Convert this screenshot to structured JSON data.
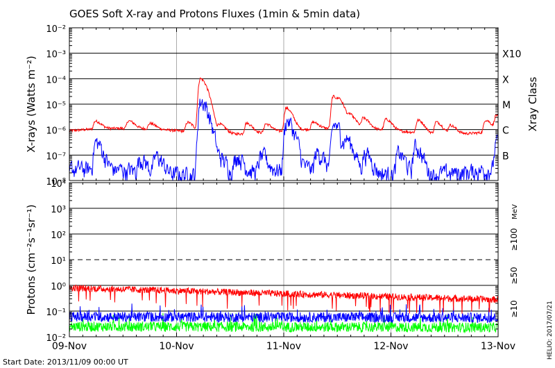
{
  "chart_data": {
    "type": "line",
    "title": "GOES Soft X-ray and Protons Fluxes   (1min & 5min data)",
    "start_date_label": "Start Date: 2013/11/09 00:00 UT",
    "credit": "HELIO: 2017/07/21",
    "x_ticks": [
      "09-Nov",
      "10-Nov",
      "11-Nov",
      "12-Nov",
      "13-Nov"
    ],
    "x_range_days": [
      0,
      4
    ],
    "panels": [
      {
        "name": "xray",
        "ylabel": "X-rays (Watts m⁻²)",
        "y_scale": "log",
        "ylim": [
          1e-08,
          0.01
        ],
        "y_ticks": [
          "10⁻⁸",
          "10⁻⁷",
          "10⁻⁶",
          "10⁻⁵",
          "10⁻⁴",
          "10⁻³",
          "10⁻²"
        ],
        "right_label": "Xray Class",
        "class_labels": [
          {
            "label": "B",
            "value": 1e-07
          },
          {
            "label": "C",
            "value": 1e-06
          },
          {
            "label": "M",
            "value": 1e-05
          },
          {
            "label": "X",
            "value": 0.0001
          },
          {
            "label": "X10",
            "value": 0.001
          }
        ],
        "series": [
          {
            "color": "#ff0000",
            "baseline": 9e-07,
            "peaks": [
              [
                0.24,
                2e-06
              ],
              [
                0.55,
                2e-06
              ],
              [
                0.75,
                1.6e-06
              ],
              [
                1.1,
                2e-06
              ],
              [
                1.22,
                0.0001
              ],
              [
                1.4,
                1.8e-06
              ],
              [
                1.65,
                2e-06
              ],
              [
                1.83,
                1.8e-06
              ],
              [
                2.02,
                7e-06
              ],
              [
                2.27,
                1.8e-06
              ],
              [
                2.46,
                2e-05
              ],
              [
                2.52,
                8e-06
              ],
              [
                2.62,
                3e-06
              ],
              [
                2.74,
                2.6e-06
              ],
              [
                2.95,
                2.5e-06
              ],
              [
                3.25,
                2.5e-06
              ],
              [
                3.42,
                2.2e-06
              ],
              [
                3.55,
                1.7e-06
              ],
              [
                3.88,
                2.5e-06
              ],
              [
                3.98,
                3.5e-06
              ]
            ]
          },
          {
            "color": "#0000ff",
            "baseline": 1.5e-08,
            "peaks": [
              [
                0.24,
                2e-07
              ],
              [
                0.65,
                5e-08
              ],
              [
                0.8,
                6e-08
              ],
              [
                1.22,
                9e-06
              ],
              [
                1.4,
                5e-08
              ],
              [
                1.55,
                7e-08
              ],
              [
                1.78,
                6e-08
              ],
              [
                2.02,
                1.5e-06
              ],
              [
                2.3,
                8e-08
              ],
              [
                2.46,
                1e-06
              ],
              [
                2.58,
                2.5e-07
              ],
              [
                2.75,
                8e-08
              ],
              [
                3.06,
                8e-08
              ],
              [
                3.22,
                1.5e-07
              ],
              [
                3.98,
                2e-07
              ]
            ]
          }
        ]
      },
      {
        "name": "protons",
        "ylabel": "Protons (cm⁻²s⁻¹sr⁻¹)",
        "y_scale": "log",
        "ylim": [
          0.01,
          10000
        ],
        "y_ticks": [
          "10⁻²",
          "10⁻¹",
          "10⁰",
          "10¹",
          "10²",
          "10³",
          "10⁴"
        ],
        "threshold_line": 10,
        "energy_unit": "MeV",
        "series": [
          {
            "name": "≥10",
            "color": "#ff0000",
            "level_start": 0.8,
            "level_end": 0.28
          },
          {
            "name": "≥50",
            "color": "#0000ff",
            "level_start": 0.06,
            "level_end": 0.055
          },
          {
            "name": "≥100",
            "color": "#00ff00",
            "level_start": 0.025,
            "level_end": 0.023
          }
        ]
      }
    ]
  }
}
